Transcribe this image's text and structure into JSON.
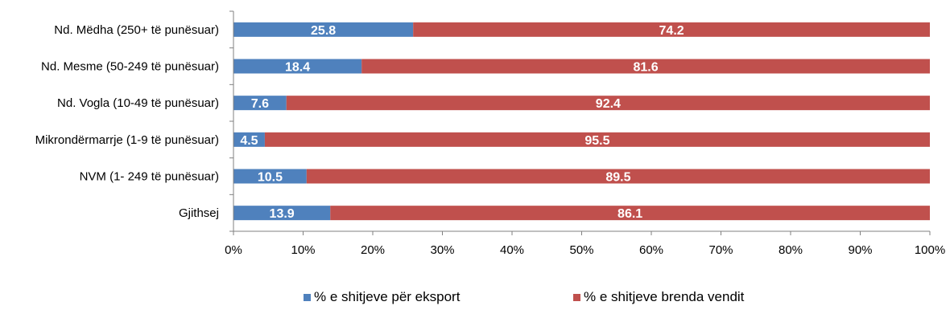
{
  "chart_data": {
    "type": "bar",
    "orientation": "horizontal",
    "stacked": "percent",
    "categories": [
      "Nd. Mëdha (250+ të punësuar)",
      "Nd. Mesme (50-249 të punësuar)",
      "Nd. Vogla (10-49 të punësuar)",
      "Mikrondërmarrje (1-9 të punësuar)",
      "NVM  (1- 249 të punësuar)",
      "Gjithsej"
    ],
    "series": [
      {
        "name": "% e shitjeve për eksport",
        "color": "#4f81bd",
        "values": [
          25.8,
          18.4,
          7.6,
          4.5,
          10.5,
          13.9
        ],
        "labels": [
          "25.8",
          "18.4",
          "7.6",
          "4.5",
          "10.5",
          "13.9"
        ]
      },
      {
        "name": "% e shitjeve brenda vendit",
        "color": "#c0504d",
        "values": [
          74.2,
          81.6,
          92.4,
          95.5,
          89.5,
          86.1
        ],
        "labels": [
          "74.2",
          "81.6",
          "92.4",
          "95.5",
          "89.5",
          "86.1"
        ]
      }
    ],
    "xlim": [
      0,
      100
    ],
    "x_ticks": [
      "0%",
      "10%",
      "20%",
      "30%",
      "40%",
      "50%",
      "60%",
      "70%",
      "80%",
      "90%",
      "100%"
    ],
    "grid": false,
    "legend_position": "bottom"
  }
}
